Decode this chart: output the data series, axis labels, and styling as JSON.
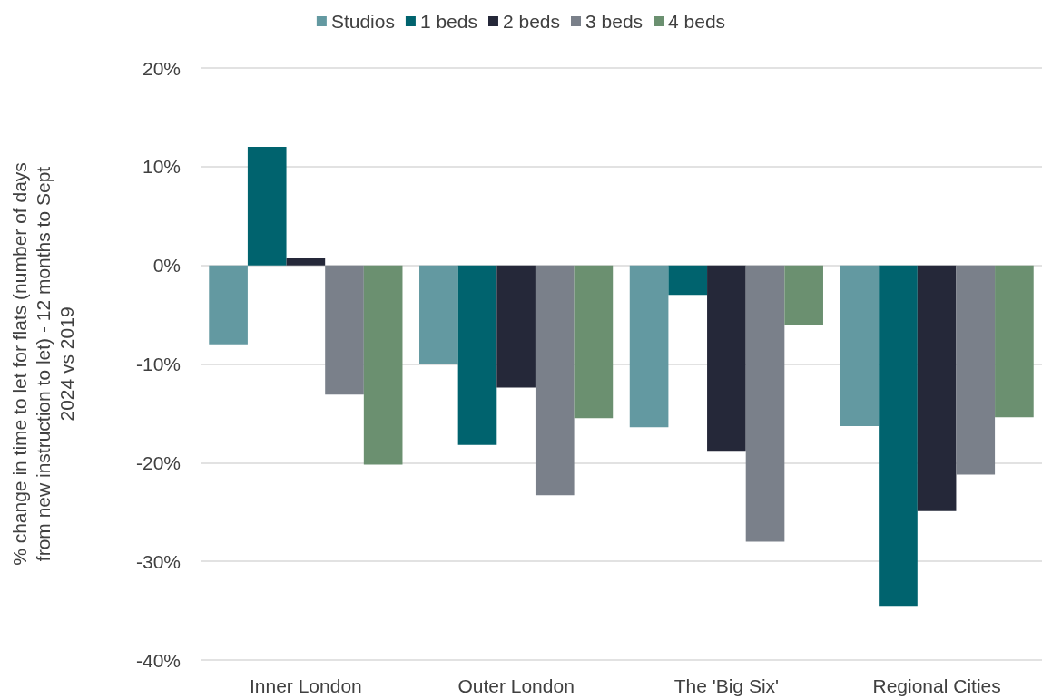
{
  "chart_data": {
    "type": "bar",
    "ylabel": "% change in time to let for flats (number of days\nfrom new instruction to let) - 12 months to Sept\n2024 vs 2019",
    "categories": [
      "Inner London",
      "Outer London",
      "The 'Big Six'",
      "Regional Cities"
    ],
    "series": [
      {
        "name": "Studios",
        "color": "#6399a1",
        "values": [
          -8,
          -10,
          -16.4,
          -16.3
        ]
      },
      {
        "name": "1 beds",
        "color": "#00636e",
        "values": [
          12,
          -18.2,
          -3,
          -34.5
        ]
      },
      {
        "name": "2 beds",
        "color": "#252839",
        "values": [
          0.7,
          -12.4,
          -18.9,
          -24.9
        ]
      },
      {
        "name": "3 beds",
        "color": "#7a808a",
        "values": [
          -13.1,
          -23.3,
          -28,
          -21.2
        ]
      },
      {
        "name": "4 beds",
        "color": "#6b9070",
        "values": [
          -20.2,
          -15.5,
          -6.1,
          -15.4
        ]
      }
    ],
    "ylim": [
      -40,
      20
    ],
    "yticks": [
      {
        "value": -40,
        "label": "-40%"
      },
      {
        "value": -30,
        "label": "-30%"
      },
      {
        "value": -20,
        "label": "-20%"
      },
      {
        "value": -10,
        "label": "-10%"
      },
      {
        "value": 0,
        "label": "0%"
      },
      {
        "value": 10,
        "label": "10%"
      },
      {
        "value": 20,
        "label": "20%"
      }
    ],
    "grid": "y",
    "legend": "top"
  }
}
